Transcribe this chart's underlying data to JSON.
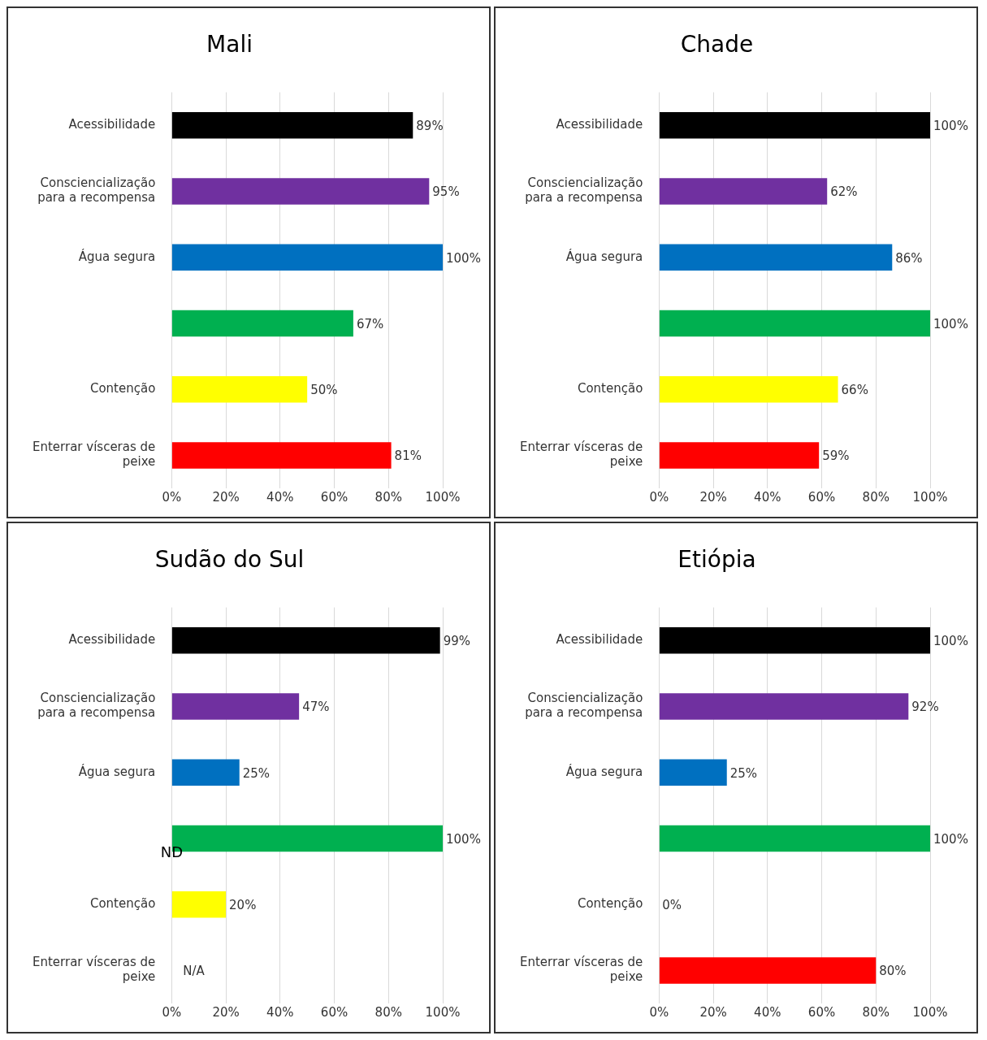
{
  "chart_data": [
    {
      "type": "bar",
      "orientation": "horizontal",
      "title": "Mali",
      "categories": [
        "Acessibilidade",
        "Consciencialização para a recompensa",
        "Água segura",
        null,
        "Contenção",
        "Enterrar vísceras de peixe"
      ],
      "values": [
        89,
        95,
        100,
        67,
        50,
        81
      ],
      "value_labels": [
        "89%",
        "95%",
        "100%",
        "67%",
        "50%",
        "81%"
      ],
      "colors": [
        "#000000",
        "#7030a0",
        "#0070c0",
        "#00b050",
        "#ffff00",
        "#ff0000"
      ],
      "xlim": [
        0,
        100
      ],
      "xticks": [
        {
          "value": 0,
          "label": "0%"
        },
        {
          "value": 20,
          "label": "20%"
        },
        {
          "value": 40,
          "label": "40%"
        },
        {
          "value": 60,
          "label": "60%"
        },
        {
          "value": 80,
          "label": "80%"
        },
        {
          "value": 100,
          "label": "100%"
        }
      ],
      "grid": "x",
      "legend": false
    },
    {
      "type": "bar",
      "orientation": "horizontal",
      "title": "Chade",
      "categories": [
        "Acessibilidade",
        "Consciencialização para a recompensa",
        "Água segura",
        null,
        "Contenção",
        "Enterrar vísceras de peixe"
      ],
      "values": [
        100,
        62,
        86,
        100,
        66,
        59
      ],
      "value_labels": [
        "100%",
        "62%",
        "86%",
        "100%",
        "66%",
        "59%"
      ],
      "colors": [
        "#000000",
        "#7030a0",
        "#0070c0",
        "#00b050",
        "#ffff00",
        "#ff0000"
      ],
      "xlim": [
        0,
        100
      ],
      "xticks": [
        {
          "value": 0,
          "label": "0%"
        },
        {
          "value": 20,
          "label": "20%"
        },
        {
          "value": 40,
          "label": "40%"
        },
        {
          "value": 60,
          "label": "60%"
        },
        {
          "value": 80,
          "label": "80%"
        },
        {
          "value": 100,
          "label": "100%"
        }
      ],
      "grid": "x",
      "legend": false
    },
    {
      "type": "bar",
      "orientation": "horizontal",
      "title": "Sudão do Sul",
      "categories": [
        "Acessibilidade",
        "Consciencialização para a recompensa",
        "Água segura",
        null,
        "Contenção",
        "Enterrar vísceras de peixe"
      ],
      "values": [
        99,
        47,
        25,
        100,
        20,
        null
      ],
      "value_labels": [
        "99%",
        "47%",
        "25%",
        "100%",
        "20%",
        "N/A"
      ],
      "colors": [
        "#000000",
        "#7030a0",
        "#0070c0",
        "#00b050",
        "#ffff00",
        "#ff0000"
      ],
      "xlim": [
        0,
        100
      ],
      "xticks": [
        {
          "value": 0,
          "label": "0%"
        },
        {
          "value": 20,
          "label": "20%"
        },
        {
          "value": 40,
          "label": "40%"
        },
        {
          "value": 60,
          "label": "60%"
        },
        {
          "value": 80,
          "label": "80%"
        },
        {
          "value": 100,
          "label": "100%"
        }
      ],
      "grid": "x",
      "legend": false,
      "annotations": [
        "ND"
      ]
    },
    {
      "type": "bar",
      "orientation": "horizontal",
      "title": "Etiópia",
      "categories": [
        "Acessibilidade",
        "Consciencialização para a recompensa",
        "Água segura",
        null,
        "Contenção",
        "Enterrar vísceras de peixe"
      ],
      "values": [
        100,
        92,
        25,
        100,
        0,
        80
      ],
      "value_labels": [
        "100%",
        "92%",
        "25%",
        "100%",
        "0%",
        "80%"
      ],
      "colors": [
        "#000000",
        "#7030a0",
        "#0070c0",
        "#00b050",
        "#ffff00",
        "#ff0000"
      ],
      "xlim": [
        0,
        100
      ],
      "xticks": [
        {
          "value": 0,
          "label": "0%"
        },
        {
          "value": 20,
          "label": "20%"
        },
        {
          "value": 40,
          "label": "40%"
        },
        {
          "value": 60,
          "label": "60%"
        },
        {
          "value": 80,
          "label": "80%"
        },
        {
          "value": 100,
          "label": "100%"
        }
      ],
      "grid": "x",
      "legend": false
    }
  ]
}
